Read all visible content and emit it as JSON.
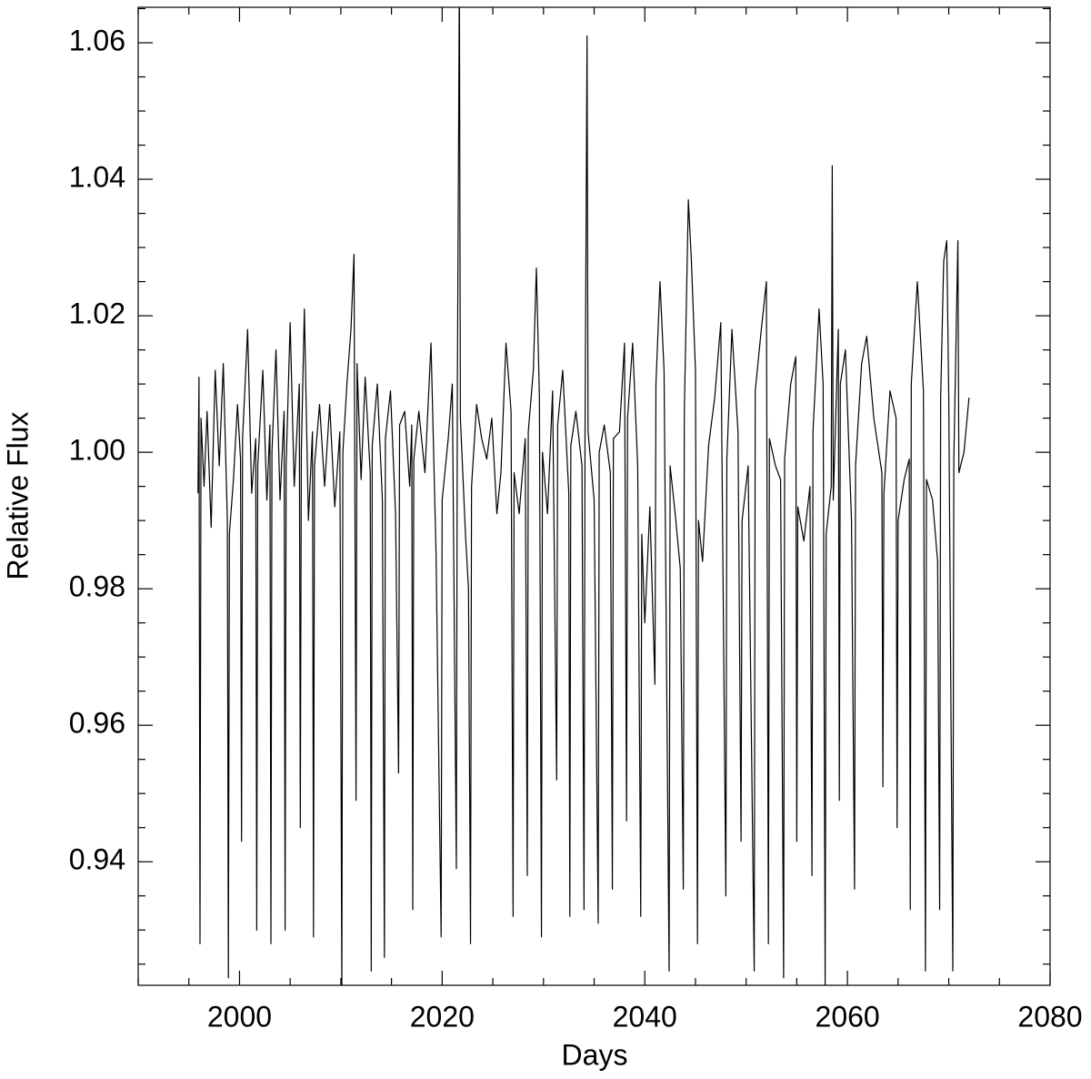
{
  "chart_data": {
    "type": "line",
    "x_label": "Days",
    "y_label": "Relative Flux",
    "color": "#000000",
    "xlim": [
      1990,
      2080
    ],
    "ylim": [
      0.9219,
      1.0652
    ],
    "xticks": [
      2000,
      2020,
      2040,
      2060,
      2080
    ],
    "yticks": [
      0.94,
      0.96,
      0.98,
      {
        "value": 1,
        "label": "1.00"
      },
      1.02,
      1.04,
      1.06
    ],
    "x_minor_ticks": [
      1990,
      1995,
      2005,
      2010,
      2015,
      2025,
      2030,
      2035,
      2045,
      2050,
      2055,
      2065,
      2070,
      2075
    ],
    "y_minor_ticks": [
      0.925,
      0.93,
      0.935,
      0.945,
      0.95,
      0.955,
      0.965,
      0.97,
      0.975,
      0.985,
      0.99,
      0.995,
      1.005,
      1.01,
      1.015,
      1.025,
      1.03,
      1.035,
      1.045,
      1.05,
      1.055,
      1.065
    ],
    "x": [
      1995.9,
      1996.0,
      1996.1,
      1996.2,
      1996.5,
      1996.8,
      1997.2,
      1997.6,
      1998.0,
      1998.4,
      1998.8,
      1998.9,
      1999.0,
      1999.4,
      1999.8,
      2000.1,
      2000.2,
      2000.3,
      2000.8,
      2001.2,
      2001.6,
      2001.7,
      2001.8,
      2002.3,
      2002.7,
      2003.0,
      2003.1,
      2003.2,
      2003.6,
      2004.0,
      2004.4,
      2004.5,
      2004.6,
      2005.0,
      2005.4,
      2005.9,
      2006.0,
      2006.1,
      2006.4,
      2006.8,
      2007.2,
      2007.3,
      2007.4,
      2007.9,
      2008.4,
      2008.9,
      2009.4,
      2009.9,
      2010.1,
      2010.2,
      2010.6,
      2011.0,
      2011.3,
      2011.5,
      2011.6,
      2012.0,
      2012.4,
      2012.9,
      2013.0,
      2013.1,
      2013.6,
      2014.1,
      2014.3,
      2014.4,
      2014.9,
      2015.4,
      2015.7,
      2015.8,
      2016.3,
      2016.8,
      2017.0,
      2017.1,
      2017.2,
      2017.7,
      2018.3,
      2018.9,
      2019.4,
      2019.9,
      2020.0,
      2020.6,
      2021.0,
      2021.4,
      2021.5,
      2021.7,
      2021.8,
      2022.3,
      2022.6,
      2022.8,
      2022.9,
      2023.4,
      2023.9,
      2024.4,
      2024.9,
      2025.4,
      2025.8,
      2026.3,
      2026.8,
      2027.0,
      2027.1,
      2027.6,
      2028.2,
      2028.4,
      2028.5,
      2029.0,
      2029.3,
      2029.6,
      2029.8,
      2029.9,
      2030.4,
      2030.9,
      2031.3,
      2031.4,
      2031.9,
      2032.5,
      2032.6,
      2032.7,
      2033.2,
      2033.8,
      2034.0,
      2034.1,
      2034.3,
      2034.4,
      2035.0,
      2035.4,
      2035.5,
      2036.0,
      2036.6,
      2036.8,
      2036.9,
      2037.5,
      2038.0,
      2038.2,
      2038.3,
      2038.8,
      2039.3,
      2039.6,
      2039.7,
      2040.0,
      2040.5,
      2041.0,
      2041.1,
      2041.5,
      2041.9,
      2042.4,
      2042.5,
      2043.0,
      2043.5,
      2043.8,
      2043.9,
      2044.3,
      2044.6,
      2045.0,
      2045.2,
      2045.3,
      2045.7,
      2046.3,
      2046.9,
      2047.5,
      2048.0,
      2048.1,
      2048.6,
      2049.2,
      2049.5,
      2049.6,
      2050.2,
      2050.8,
      2050.9,
      2051.5,
      2052.0,
      2052.2,
      2052.3,
      2052.9,
      2053.4,
      2053.7,
      2053.8,
      2054.4,
      2054.9,
      2055.0,
      2055.1,
      2055.7,
      2056.3,
      2056.5,
      2056.6,
      2057.2,
      2057.6,
      2057.8,
      2057.9,
      2058.4,
      2058.5,
      2058.6,
      2059.1,
      2059.2,
      2059.3,
      2059.8,
      2060.4,
      2060.7,
      2060.8,
      2061.4,
      2061.9,
      2062.6,
      2063.4,
      2063.5,
      2063.6,
      2064.2,
      2064.8,
      2064.9,
      2065.0,
      2065.6,
      2066.1,
      2066.2,
      2066.3,
      2066.9,
      2067.5,
      2067.7,
      2067.8,
      2068.4,
      2068.9,
      2069.1,
      2069.2,
      2069.5,
      2069.8,
      2070.0,
      2070.4,
      2070.5,
      2070.9,
      2071.0,
      2071.5,
      2072.0
    ],
    "values": [
      0.994,
      1.011,
      0.928,
      1.005,
      0.995,
      1.006,
      0.989,
      1.012,
      0.998,
      1.013,
      0.99,
      0.923,
      0.988,
      0.996,
      1.007,
      0.999,
      0.943,
      1.002,
      1.018,
      0.994,
      1.002,
      0.93,
      0.998,
      1.012,
      0.993,
      1.004,
      0.928,
      1.0,
      1.015,
      0.993,
      1.006,
      0.93,
      0.998,
      1.019,
      0.995,
      1.01,
      0.945,
      1.0,
      1.021,
      0.99,
      1.003,
      0.929,
      0.998,
      1.007,
      0.995,
      1.007,
      0.992,
      1.003,
      0.921,
      1.0,
      1.01,
      1.018,
      1.029,
      0.949,
      1.013,
      0.996,
      1.011,
      0.997,
      0.924,
      1.001,
      1.01,
      0.993,
      0.926,
      1.002,
      1.009,
      0.991,
      0.953,
      1.004,
      1.006,
      0.995,
      1.004,
      0.933,
      0.999,
      1.006,
      0.997,
      1.016,
      0.985,
      0.929,
      0.993,
      1.002,
      1.01,
      0.939,
      1.009,
      1.07,
      1.005,
      0.988,
      0.98,
      0.928,
      0.995,
      1.007,
      1.002,
      0.999,
      1.005,
      0.991,
      0.997,
      1.016,
      1.006,
      0.932,
      0.997,
      0.991,
      1.002,
      0.938,
      1.003,
      1.012,
      1.027,
      1.008,
      0.929,
      1.0,
      0.991,
      1.009,
      0.952,
      1.004,
      1.012,
      0.994,
      0.932,
      1.001,
      1.006,
      0.998,
      0.933,
      1.002,
      1.061,
      1.003,
      0.993,
      0.931,
      1.0,
      1.004,
      0.997,
      0.936,
      1.002,
      1.003,
      1.016,
      0.946,
      1.005,
      1.016,
      0.998,
      0.932,
      0.988,
      0.975,
      0.992,
      0.966,
      1.01,
      1.025,
      1.012,
      0.924,
      0.998,
      0.991,
      0.983,
      0.936,
      1.006,
      1.037,
      1.028,
      1.012,
      0.928,
      0.99,
      0.984,
      1.001,
      1.008,
      1.019,
      0.935,
      0.999,
      1.018,
      1.003,
      0.943,
      0.99,
      0.998,
      0.924,
      1.009,
      1.018,
      1.025,
      0.928,
      1.002,
      0.998,
      0.996,
      0.923,
      0.999,
      1.01,
      1.014,
      0.943,
      0.992,
      0.987,
      0.995,
      0.938,
      1.003,
      1.021,
      1.01,
      0.922,
      0.988,
      0.995,
      1.042,
      0.993,
      1.018,
      0.949,
      1.01,
      1.015,
      0.99,
      0.936,
      0.998,
      1.013,
      1.017,
      1.005,
      0.997,
      0.951,
      0.994,
      1.009,
      1.005,
      0.945,
      0.99,
      0.996,
      0.999,
      0.933,
      1.01,
      1.025,
      1.009,
      0.924,
      0.996,
      0.993,
      0.984,
      0.933,
      1.008,
      1.028,
      1.031,
      1.008,
      0.924,
      0.999,
      1.031,
      0.997,
      1.0,
      1.008
    ]
  }
}
